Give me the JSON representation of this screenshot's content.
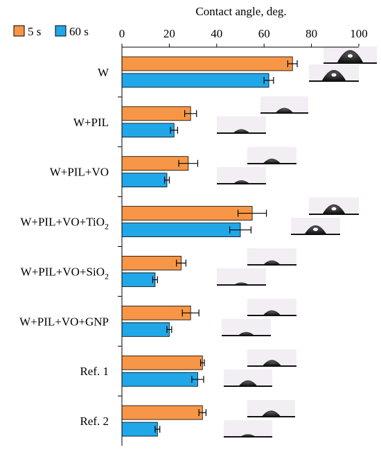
{
  "chart_data": {
    "type": "bar",
    "orientation": "horizontal",
    "xlabel": "Contact angle, deg.",
    "xlim": [
      0,
      100
    ],
    "x_ticks": [
      "0",
      "20",
      "40",
      "60",
      "80",
      "100"
    ],
    "grid": false,
    "legend_placement": "top-left",
    "categories": [
      "W",
      "W+PIL",
      "W+PIL+VO",
      "W+PIL+VO+TiO2",
      "W+PIL+VO+SiO2",
      "W+PIL+VO+GNP",
      "Ref. 1",
      "Ref. 2"
    ],
    "series": [
      {
        "name": "5 s",
        "color": "#f79646",
        "values": [
          72,
          29,
          28,
          55,
          25,
          29,
          34,
          34
        ],
        "errors": [
          2,
          2.5,
          4,
          6,
          2,
          3.5,
          0.8,
          1.5
        ]
      },
      {
        "name": "60 s",
        "color": "#1fa7e8",
        "values": [
          62,
          22,
          19,
          50,
          14,
          20,
          32,
          15
        ],
        "errors": [
          2,
          1.5,
          1,
          4.5,
          1,
          1,
          2.5,
          1
        ]
      }
    ]
  }
}
